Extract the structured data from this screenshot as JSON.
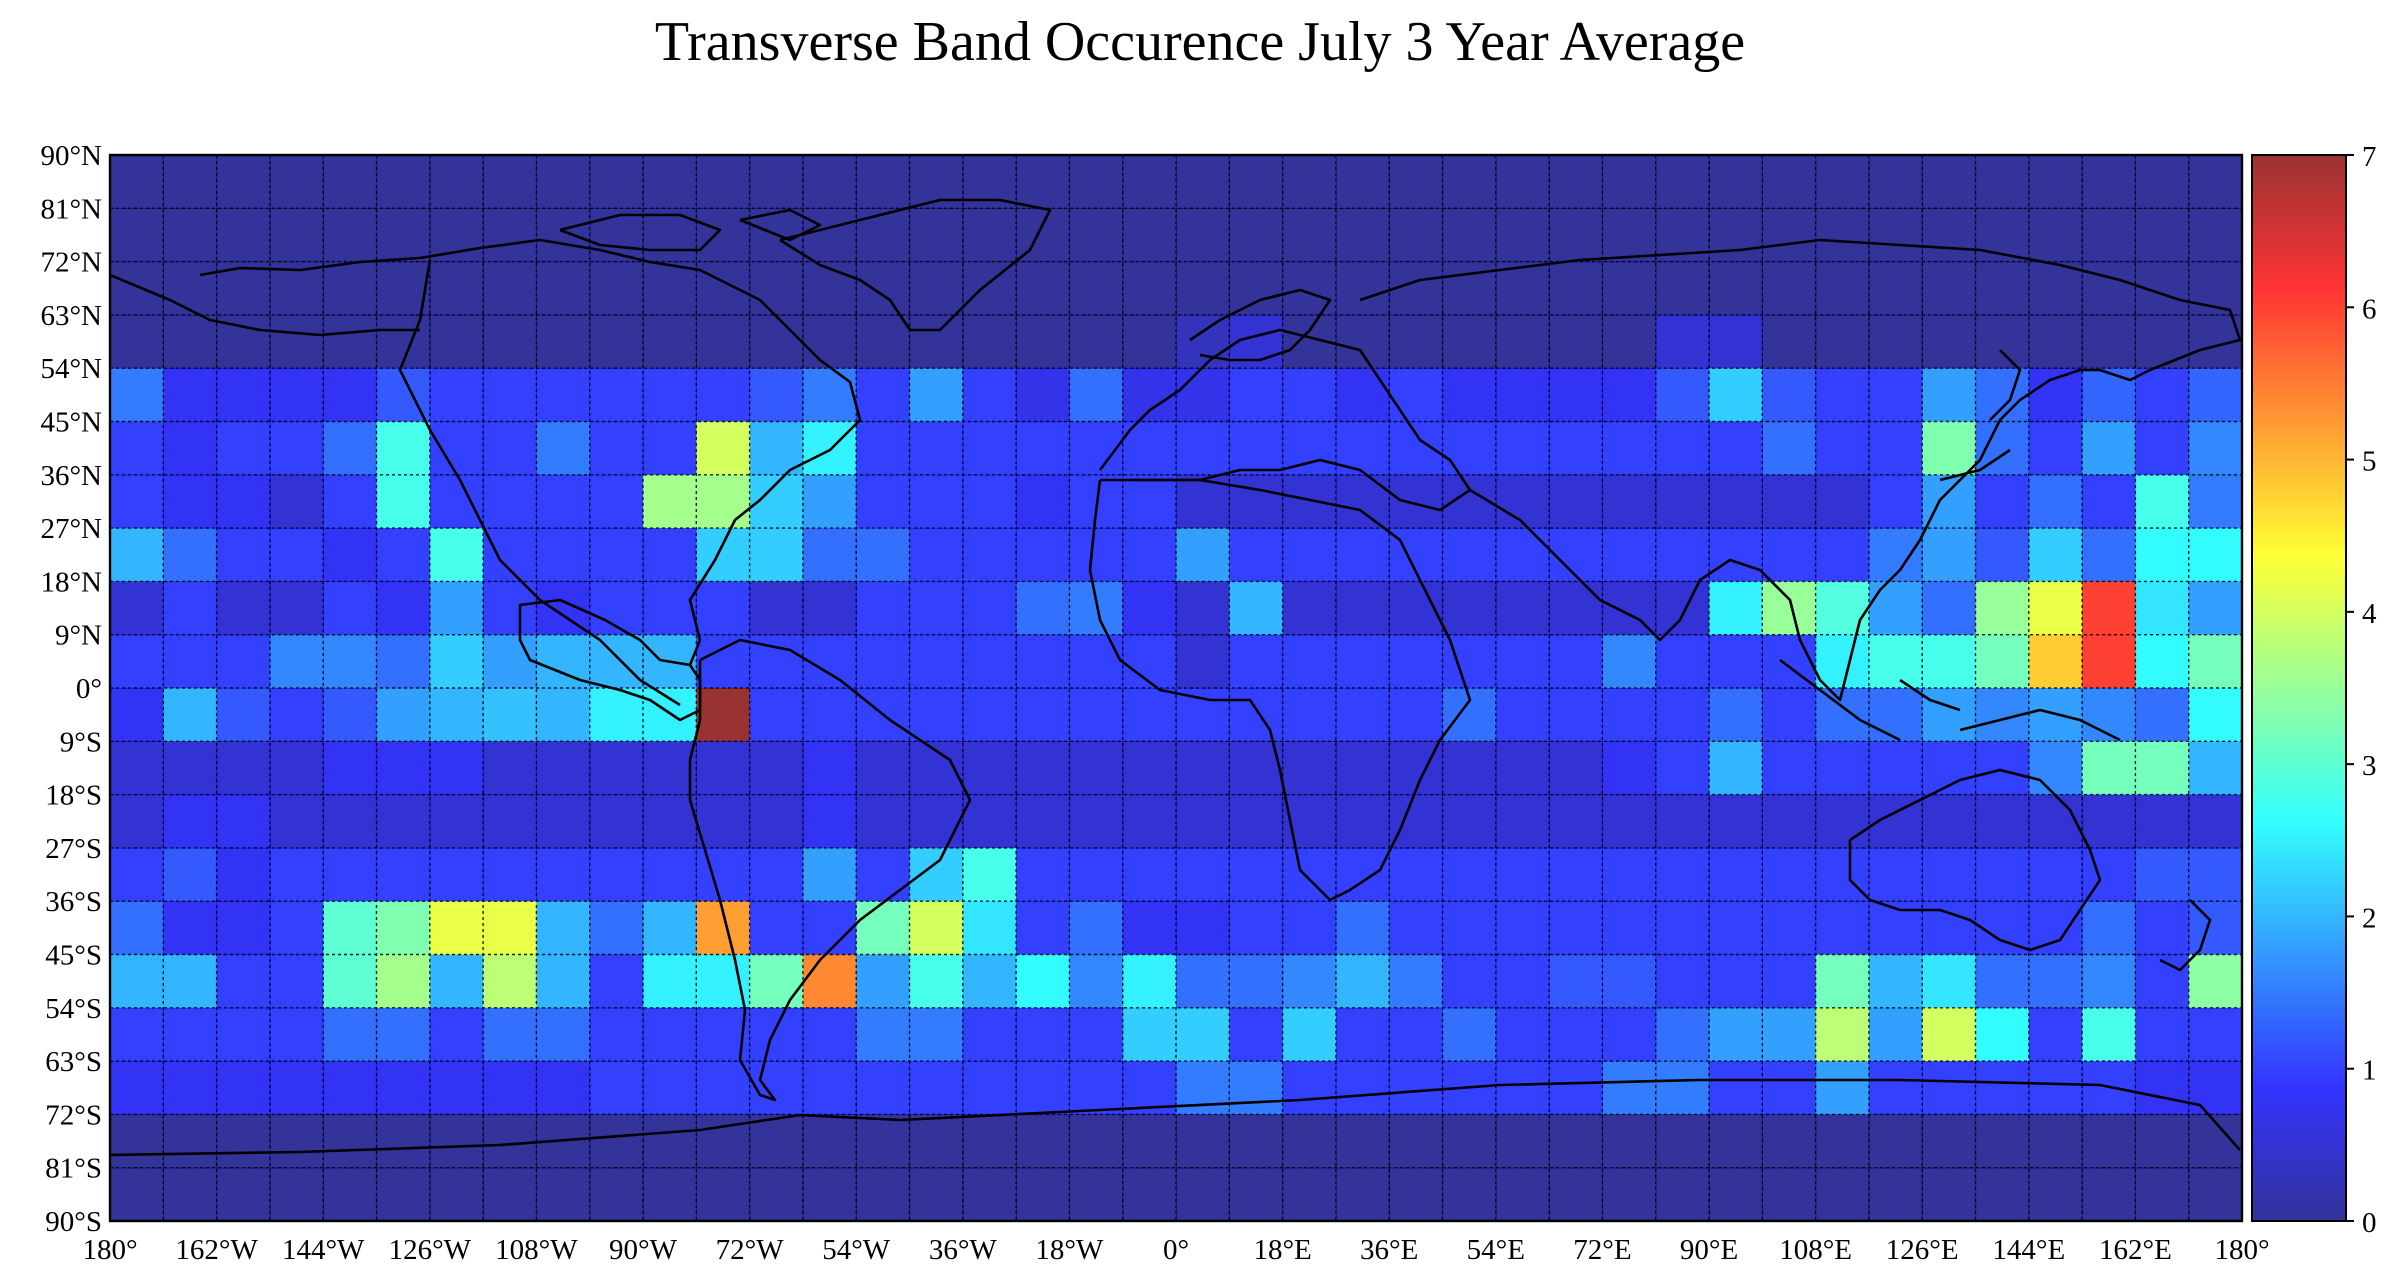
{
  "chart_data": {
    "type": "heatmap",
    "title": "Transverse Band Occurence July 3 Year Average",
    "x_tick_labels": [
      "180°",
      "162°W",
      "144°W",
      "126°W",
      "108°W",
      "90°W",
      "72°W",
      "54°W",
      "36°W",
      "18°W",
      "0°",
      "18°E",
      "36°E",
      "54°E",
      "72°E",
      "90°E",
      "108°E",
      "126°E",
      "144°E",
      "162°E",
      "180°"
    ],
    "y_tick_labels": [
      "90°N",
      "81°N",
      "72°N",
      "63°N",
      "54°N",
      "45°N",
      "36°N",
      "27°N",
      "18°N",
      "9°N",
      "0°",
      "9°S",
      "18°S",
      "27°S",
      "36°S",
      "45°S",
      "54°S",
      "63°S",
      "72°S",
      "81°S",
      "90°S"
    ],
    "lon_range": [
      -180,
      180
    ],
    "lat_range": [
      -90,
      90
    ],
    "lon_step": 9,
    "lat_step": 9,
    "colorbar": {
      "min": 0,
      "max": 7,
      "tick_labels": [
        "0",
        "1",
        "2",
        "3",
        "4",
        "5",
        "6",
        "7"
      ],
      "colormap": "jet"
    },
    "rows_lat_top_to_bottom": [
      [
        0,
        0,
        0,
        0,
        0,
        0,
        0,
        0,
        0,
        0,
        0,
        0,
        0,
        0,
        0,
        0,
        0,
        0,
        0,
        0,
        0,
        0,
        0,
        0,
        0,
        0,
        0,
        0,
        0,
        0,
        0,
        0,
        0,
        0,
        0,
        0,
        0,
        0,
        0,
        0
      ],
      [
        0,
        0,
        0,
        0,
        0,
        0,
        0,
        0,
        0,
        0,
        0,
        0,
        0,
        0,
        0,
        0,
        0,
        0,
        0,
        0,
        0,
        0,
        0,
        0,
        0,
        0,
        0,
        0,
        0,
        0,
        0,
        0,
        0,
        0,
        0,
        0,
        0,
        0,
        0,
        0
      ],
      [
        0,
        0,
        0,
        0,
        0,
        0,
        0,
        0,
        0,
        0,
        0,
        0,
        0,
        0,
        0,
        0,
        0,
        0,
        0,
        0,
        0,
        0,
        0,
        0,
        0,
        0,
        0,
        0,
        0,
        0,
        0,
        0,
        0,
        0,
        0,
        0,
        0,
        0,
        0,
        0
      ],
      [
        0,
        0,
        0,
        0,
        0,
        0,
        0,
        0,
        0,
        0,
        0,
        0,
        0,
        0,
        0,
        0,
        0,
        0,
        0,
        0,
        0.3,
        0.5,
        0,
        0,
        0,
        0,
        0,
        0,
        0,
        0.5,
        0.5,
        0,
        0,
        0,
        0,
        0,
        0,
        0,
        0,
        0
      ],
      [
        1.5,
        0.8,
        0.8,
        0.8,
        0.8,
        1.2,
        1.0,
        1.0,
        1.0,
        1.0,
        1.0,
        1.0,
        1.2,
        1.5,
        1.0,
        1.8,
        1.0,
        0.7,
        1.4,
        0.7,
        0.7,
        1.0,
        1.0,
        0.8,
        1.0,
        0.8,
        0.8,
        0.8,
        0.8,
        1.2,
        2.2,
        1.2,
        1.0,
        1.0,
        1.8,
        1.4,
        0.8,
        1.3,
        1.0,
        1.3
      ],
      [
        1.0,
        0.8,
        1.0,
        1.0,
        1.4,
        2.8,
        1.0,
        1.0,
        1.5,
        1.0,
        1.0,
        4.0,
        2.0,
        2.5,
        1.0,
        1.0,
        1.0,
        1.0,
        1.0,
        1.0,
        1.0,
        1.0,
        1.0,
        1.0,
        1.0,
        1.0,
        1.0,
        1.0,
        1.0,
        1.0,
        1.0,
        1.4,
        1.0,
        1.0,
        3.3,
        1.4,
        1.0,
        1.8,
        1.0,
        1.6
      ],
      [
        1.0,
        0.8,
        0.8,
        0.5,
        1.0,
        2.8,
        1.0,
        1.0,
        1.0,
        1.0,
        3.6,
        3.6,
        2.2,
        1.8,
        1.0,
        1.0,
        1.0,
        0.8,
        1.0,
        1.0,
        0.5,
        0.5,
        0.5,
        0.5,
        0.5,
        0.5,
        0.5,
        0.5,
        0.5,
        0.5,
        0.5,
        0.5,
        0.5,
        1.0,
        1.8,
        1.0,
        1.4,
        1.0,
        2.8,
        1.5
      ],
      [
        2.0,
        1.4,
        1.0,
        1.0,
        0.8,
        1.0,
        2.8,
        1.0,
        1.0,
        1.0,
        1.0,
        2.2,
        2.2,
        1.4,
        1.4,
        1.0,
        1.0,
        1.0,
        1.0,
        1.0,
        1.8,
        1.0,
        1.0,
        1.0,
        1.0,
        1.0,
        1.0,
        1.0,
        1.0,
        1.0,
        1.0,
        1.0,
        1.0,
        1.5,
        1.8,
        1.2,
        2.2,
        1.4,
        2.6,
        2.6
      ],
      [
        0.5,
        1.0,
        0.5,
        0.5,
        1.0,
        0.8,
        1.8,
        1.0,
        0.8,
        1.0,
        1.0,
        1.0,
        0.5,
        0.5,
        1.0,
        1.0,
        1.0,
        1.4,
        1.5,
        0.8,
        0.5,
        2.0,
        0.5,
        0.5,
        0.5,
        0.5,
        0.5,
        0.5,
        0.5,
        0.5,
        2.5,
        3.5,
        2.9,
        1.8,
        1.4,
        3.5,
        4.2,
        6.0,
        2.4,
        1.8
      ],
      [
        1.0,
        1.0,
        1.0,
        1.6,
        1.6,
        1.4,
        2.2,
        1.8,
        2.0,
        2.0,
        2.0,
        1.0,
        1.0,
        1.0,
        1.0,
        1.0,
        1.0,
        1.0,
        1.0,
        1.0,
        0.5,
        1.0,
        1.0,
        1.0,
        1.0,
        1.0,
        1.0,
        1.0,
        1.6,
        1.0,
        1.0,
        1.0,
        2.5,
        2.8,
        2.8,
        3.2,
        4.8,
        6.0,
        2.6,
        3.2
      ],
      [
        0.8,
        2.0,
        1.2,
        1.0,
        1.2,
        1.8,
        2.0,
        2.1,
        2.0,
        2.5,
        2.5,
        7.0,
        1.0,
        1.0,
        1.0,
        1.0,
        1.0,
        1.0,
        1.0,
        1.0,
        1.0,
        1.0,
        1.0,
        1.0,
        1.0,
        1.4,
        1.0,
        1.0,
        1.0,
        1.0,
        1.4,
        1.0,
        1.4,
        1.4,
        1.8,
        1.6,
        1.8,
        1.6,
        1.4,
        2.6
      ],
      [
        0.5,
        0.5,
        0.5,
        0.5,
        0.8,
        0.8,
        0.8,
        0.5,
        0.5,
        0.5,
        0.5,
        0.5,
        0.5,
        0.8,
        0.5,
        0.5,
        0.5,
        0.5,
        0.5,
        0.5,
        0.5,
        0.5,
        0.5,
        0.5,
        0.5,
        0.5,
        0.5,
        0.5,
        0.8,
        1.0,
        2.0,
        1.0,
        1.0,
        1.0,
        1.0,
        1.0,
        1.6,
        3.2,
        3.2,
        2.0
      ],
      [
        0.5,
        0.8,
        0.8,
        0.5,
        0.5,
        0.5,
        0.5,
        0.5,
        0.5,
        0.5,
        0.5,
        0.5,
        0.5,
        0.8,
        0.5,
        0.5,
        0.5,
        0.5,
        0.5,
        0.5,
        0.5,
        0.5,
        0.5,
        0.5,
        0.5,
        0.5,
        0.5,
        0.5,
        0.5,
        0.5,
        0.5,
        0.5,
        0.5,
        0.5,
        0.5,
        0.5,
        0.5,
        0.5,
        0.5,
        0.5
      ],
      [
        1.0,
        1.2,
        0.8,
        1.0,
        1.0,
        1.0,
        1.0,
        1.0,
        1.0,
        1.0,
        1.0,
        1.0,
        1.0,
        1.8,
        1.0,
        2.2,
        2.8,
        1.0,
        1.0,
        1.0,
        1.0,
        1.0,
        1.0,
        1.0,
        1.0,
        1.0,
        1.0,
        1.0,
        1.0,
        1.0,
        1.0,
        1.0,
        1.0,
        1.0,
        1.0,
        1.0,
        1.0,
        1.0,
        1.2,
        1.2
      ],
      [
        1.4,
        0.8,
        0.8,
        1.0,
        3.0,
        3.3,
        4.2,
        4.2,
        2.0,
        1.4,
        2.0,
        5.2,
        1.0,
        1.0,
        3.2,
        4.0,
        2.4,
        1.0,
        1.4,
        0.8,
        0.8,
        1.0,
        1.0,
        1.4,
        1.0,
        1.0,
        1.0,
        1.0,
        1.0,
        1.0,
        1.0,
        1.0,
        1.0,
        1.0,
        1.0,
        1.0,
        1.0,
        1.4,
        1.0,
        1.2
      ],
      [
        2.0,
        2.0,
        1.0,
        1.0,
        3.0,
        3.6,
        2.0,
        3.8,
        2.0,
        1.0,
        2.5,
        2.5,
        3.2,
        5.4,
        1.8,
        2.8,
        2.0,
        2.6,
        1.6,
        2.5,
        1.4,
        1.4,
        1.6,
        2.0,
        1.5,
        1.0,
        1.0,
        1.2,
        1.2,
        1.0,
        1.0,
        1.0,
        3.2,
        2.0,
        2.4,
        1.4,
        1.4,
        1.6,
        1.0,
        3.4
      ],
      [
        1.0,
        1.0,
        1.0,
        1.0,
        1.4,
        1.4,
        1.0,
        1.4,
        1.4,
        1.0,
        1.0,
        1.0,
        1.0,
        1.0,
        1.5,
        1.5,
        1.0,
        1.0,
        1.0,
        2.2,
        2.2,
        1.0,
        2.2,
        1.0,
        1.0,
        1.4,
        1.0,
        1.0,
        1.0,
        1.4,
        1.8,
        1.8,
        3.8,
        1.8,
        4.0,
        2.6,
        1.0,
        2.8,
        1.0,
        1.0
      ],
      [
        0.8,
        0.8,
        0.8,
        0.8,
        0.8,
        0.8,
        0.8,
        0.8,
        0.8,
        1.0,
        1.0,
        1.0,
        1.0,
        1.0,
        1.0,
        1.0,
        1.0,
        1.0,
        1.0,
        1.0,
        1.5,
        1.5,
        1.0,
        1.0,
        1.0,
        1.0,
        1.0,
        1.0,
        1.5,
        1.5,
        1.0,
        1.0,
        1.8,
        1.0,
        1.0,
        1.0,
        1.0,
        1.0,
        0.8,
        0.8
      ],
      [
        0,
        0,
        0,
        0,
        0,
        0,
        0,
        0,
        0,
        0,
        0,
        0,
        0,
        0,
        0,
        0,
        0,
        0,
        0,
        0,
        0,
        0,
        0,
        0,
        0,
        0,
        0,
        0,
        0,
        0,
        0,
        0,
        0,
        0,
        0,
        0,
        0,
        0,
        0,
        0
      ],
      [
        0,
        0,
        0,
        0,
        0,
        0,
        0,
        0,
        0,
        0,
        0,
        0,
        0,
        0,
        0,
        0,
        0,
        0,
        0,
        0,
        0,
        0,
        0,
        0,
        0,
        0,
        0,
        0,
        0,
        0,
        0,
        0,
        0,
        0,
        0,
        0,
        0,
        0,
        0,
        0
      ]
    ]
  }
}
